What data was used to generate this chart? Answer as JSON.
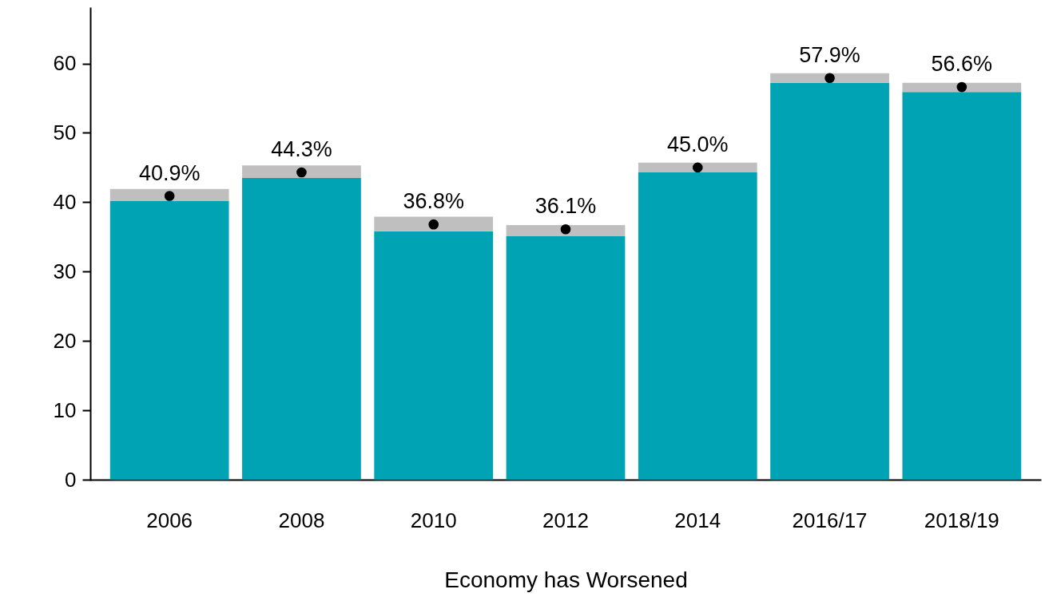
{
  "chart_data": {
    "type": "bar",
    "xlabel": "Economy has Worsened",
    "categories": [
      "2006",
      "2008",
      "2010",
      "2012",
      "2014",
      "2016/17",
      "2018/19"
    ],
    "stacked": true,
    "series": [
      {
        "color": "#00a3b4",
        "values": [
          40.2,
          43.5,
          35.8,
          35.1,
          44.3,
          57.2,
          55.9
        ]
      },
      {
        "color": "#bfbfbf",
        "values": [
          1.7,
          1.8,
          2.1,
          1.6,
          1.4,
          1.4,
          1.3
        ]
      },
      {
        "type": "scatter",
        "color": "#000000",
        "marker": "circle",
        "values": [
          40.9,
          44.3,
          36.8,
          36.1,
          45.0,
          57.9,
          56.6
        ],
        "value_labels": [
          "40.9%",
          "44.3%",
          "36.8%",
          "36.1%",
          "45.0%",
          "57.9%",
          "56.6%"
        ]
      }
    ],
    "ylim": [
      0,
      68
    ],
    "yticks": [
      0,
      10,
      20,
      30,
      40,
      50,
      60
    ],
    "grid": false
  }
}
